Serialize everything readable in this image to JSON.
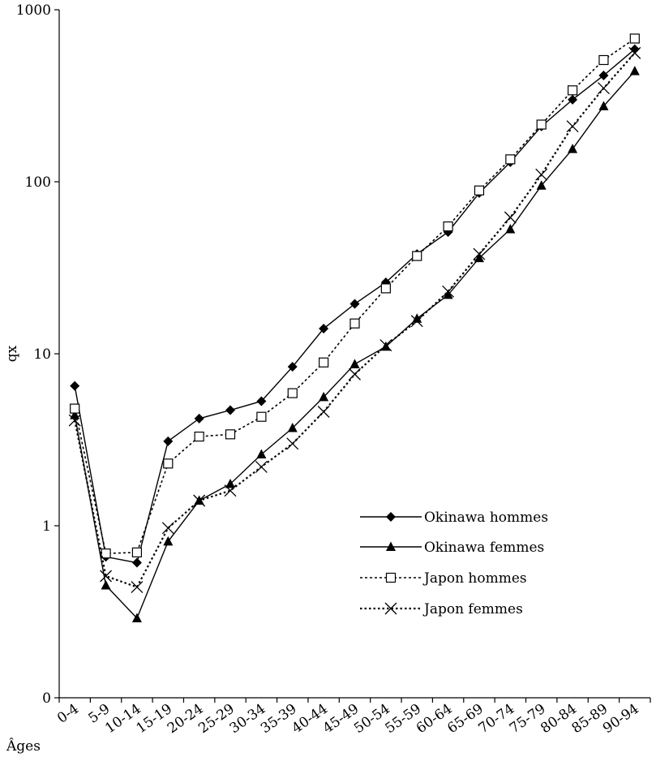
{
  "chart_data": {
    "type": "line",
    "yscale": "log",
    "ylabel": "qx",
    "xlabel": "Âges",
    "ylim": [
      0.1,
      1000
    ],
    "yticks": [
      {
        "value": 0.1,
        "label": "0"
      },
      {
        "value": 1,
        "label": "1"
      },
      {
        "value": 10,
        "label": "10"
      },
      {
        "value": 100,
        "label": "100"
      },
      {
        "value": 1000,
        "label": "1000"
      }
    ],
    "categories": [
      "0-4",
      "5-9",
      "10-14",
      "15-19",
      "20-24",
      "25-29",
      "30-34",
      "35-39",
      "40-44",
      "45-49",
      "50-54",
      "55-59",
      "60-64",
      "65-69",
      "70-74",
      "75-79",
      "80-84",
      "85-89",
      "90-94"
    ],
    "legend_position": "center-right",
    "series": [
      {
        "name": "Okinawa hommes",
        "marker": "diamond",
        "line": "solid",
        "values": [
          6.5,
          0.66,
          0.61,
          3.1,
          4.2,
          4.7,
          5.3,
          8.4,
          14,
          19.5,
          26,
          38,
          51,
          86,
          130,
          210,
          300,
          415,
          590
        ]
      },
      {
        "name": "Okinawa femmes",
        "marker": "triangle",
        "line": "solid",
        "values": [
          4.4,
          0.45,
          0.29,
          0.81,
          1.4,
          1.75,
          2.6,
          3.7,
          5.6,
          8.7,
          11,
          16,
          22,
          36,
          53,
          95,
          155,
          275,
          440
        ]
      },
      {
        "name": "Japon hommes",
        "marker": "square-open",
        "line": "dotted",
        "values": [
          4.8,
          0.69,
          0.7,
          2.3,
          3.3,
          3.4,
          4.3,
          5.9,
          8.9,
          15,
          24,
          37,
          55,
          89,
          135,
          215,
          340,
          510,
          680
        ]
      },
      {
        "name": "Japon femmes",
        "marker": "x",
        "line": "dotted",
        "values": [
          4.1,
          0.51,
          0.44,
          0.97,
          1.4,
          1.6,
          2.2,
          3.0,
          4.6,
          7.6,
          11.2,
          15.5,
          23,
          38,
          62,
          110,
          210,
          350,
          560
        ]
      }
    ]
  }
}
